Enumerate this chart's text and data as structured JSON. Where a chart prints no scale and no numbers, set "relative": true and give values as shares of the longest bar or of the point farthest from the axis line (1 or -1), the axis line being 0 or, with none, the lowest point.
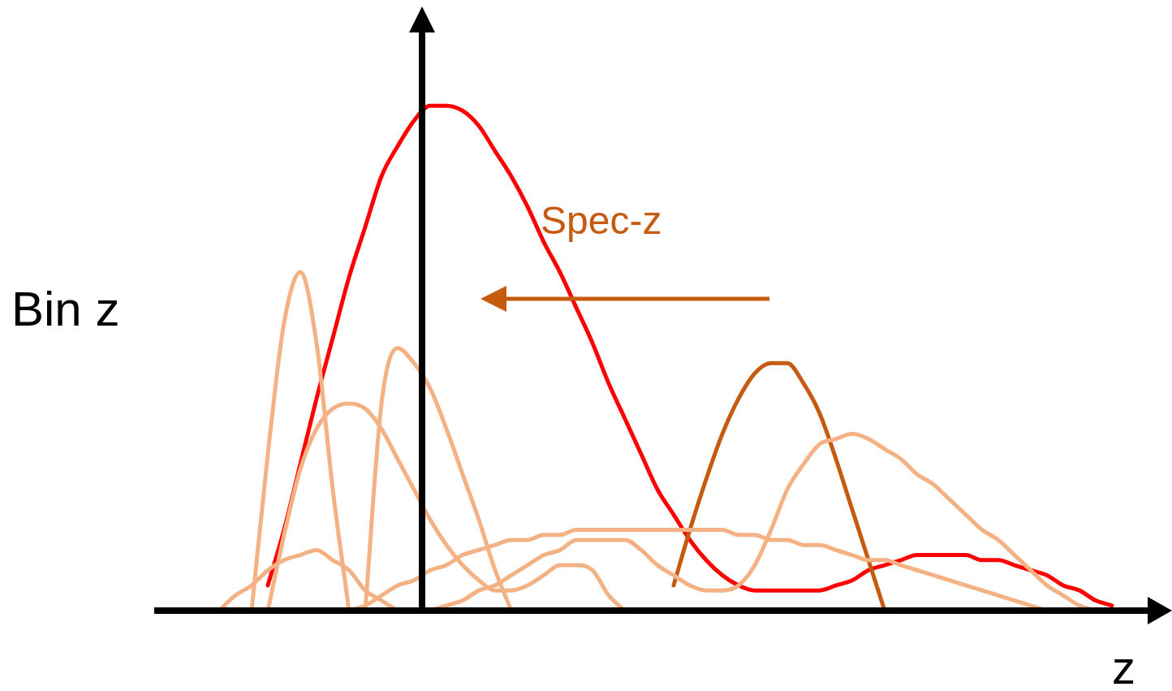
{
  "chart_data": {
    "type": "line",
    "relative": true,
    "legend": false,
    "marker": "none",
    "line_style": "solid",
    "xlabel": "z",
    "ylabel": "Bin z",
    "annotations": [
      "Spec-z"
    ],
    "categories": [
      null,
      null,
      null,
      null,
      null,
      null,
      null,
      null,
      null,
      null,
      null,
      null,
      null,
      null,
      null,
      null,
      null,
      null,
      null,
      null,
      null,
      null,
      null,
      null,
      null,
      null,
      null,
      null,
      null,
      null,
      null,
      null,
      null,
      null,
      null,
      null,
      null,
      null,
      null,
      null,
      null,
      null,
      null,
      null,
      null,
      null,
      null,
      null,
      null,
      null,
      null,
      null,
      null,
      null,
      null,
      null,
      null,
      null,
      null,
      null,
      null,
      null
    ],
    "series": [
      {
        "color": "#f4b183",
        "values": [
          null,
          null,
          null,
          null,
          null,
          null,
          0,
          0.31,
          0.57,
          0.67,
          0.53,
          0.24,
          0,
          null,
          null,
          null,
          null,
          null,
          null,
          null,
          null,
          null,
          null,
          null,
          null,
          null,
          null,
          null,
          null,
          null,
          null,
          null,
          null,
          null,
          null,
          null,
          null,
          null,
          null,
          null,
          null,
          null,
          null,
          null,
          null,
          null,
          null,
          null,
          null,
          null,
          null,
          null,
          null,
          null,
          null,
          null,
          null,
          null,
          null,
          null,
          null,
          null
        ]
      },
      {
        "color": "#f4b183",
        "values": [
          null,
          null,
          null,
          null,
          null,
          null,
          null,
          0,
          0.15,
          0.28,
          0.36,
          0.4,
          0.41,
          0.4,
          0.36,
          0.3,
          0.24,
          0.18,
          0.13,
          0.09,
          0.06,
          0.04,
          0.04,
          0.05,
          0.07,
          0.09,
          0.09,
          0.08,
          0.03,
          0,
          null,
          null,
          null,
          null,
          null,
          null,
          null,
          null,
          null,
          null,
          null,
          null,
          null,
          null,
          null,
          null,
          null,
          null,
          null,
          null,
          null,
          null,
          null,
          null,
          null,
          null,
          null,
          null,
          null,
          null,
          null,
          null
        ]
      },
      {
        "color": "#f4b183",
        "values": [
          null,
          null,
          null,
          null,
          null,
          null,
          null,
          null,
          null,
          null,
          null,
          null,
          null,
          0,
          0.41,
          0.52,
          0.49,
          0.44,
          0.36,
          0.27,
          0.18,
          0.08,
          0,
          null,
          null,
          null,
          null,
          null,
          null,
          null,
          null,
          null,
          null,
          null,
          null,
          null,
          null,
          null,
          null,
          null,
          null,
          null,
          null,
          null,
          null,
          null,
          null,
          null,
          null,
          null,
          null,
          null,
          null,
          null,
          null,
          null,
          null,
          null,
          null,
          null,
          null,
          null
        ]
      },
      {
        "color": "#f4b183",
        "values": [
          null,
          null,
          null,
          null,
          0,
          0.03,
          0.05,
          0.08,
          0.1,
          0.11,
          0.12,
          0.1,
          0.08,
          0.04,
          0.02,
          0,
          null,
          null,
          null,
          null,
          null,
          null,
          null,
          null,
          null,
          null,
          null,
          null,
          null,
          null,
          null,
          null,
          null,
          null,
          null,
          null,
          null,
          null,
          null,
          null,
          null,
          null,
          null,
          null,
          null,
          null,
          null,
          null,
          null,
          null,
          null,
          null,
          null,
          null,
          null,
          null,
          null,
          null,
          null,
          null,
          null,
          null
        ]
      },
      {
        "color": "#f4b183",
        "values": [
          null,
          null,
          null,
          null,
          null,
          null,
          null,
          null,
          null,
          null,
          null,
          null,
          0,
          0.01,
          0.03,
          0.05,
          0.06,
          0.08,
          0.09,
          0.11,
          0.12,
          0.13,
          0.14,
          0.14,
          0.15,
          0.15,
          0.16,
          0.16,
          0.16,
          0.16,
          0.16,
          0.16,
          0.16,
          0.16,
          0.16,
          0.16,
          0.15,
          0.15,
          0.14,
          0.14,
          0.13,
          0.13,
          0.12,
          0.11,
          0.1,
          0.1,
          0.09,
          0.08,
          0.07,
          0.06,
          0.05,
          0.04,
          0.03,
          0.02,
          0.01,
          0,
          null,
          null,
          null,
          null,
          null,
          null
        ]
      },
      {
        "color": "#f4b183",
        "values": [
          null,
          null,
          null,
          null,
          null,
          null,
          null,
          null,
          null,
          null,
          null,
          null,
          null,
          null,
          null,
          null,
          null,
          0,
          0.01,
          0.02,
          0.04,
          0.05,
          0.07,
          0.09,
          0.11,
          0.12,
          0.14,
          0.14,
          0.14,
          0.14,
          0.12,
          0.09,
          0.07,
          0.05,
          0.04,
          0.04,
          0.05,
          0.09,
          0.16,
          0.24,
          0.29,
          0.33,
          0.34,
          0.35,
          0.34,
          0.32,
          0.3,
          0.27,
          0.25,
          0.22,
          0.19,
          0.16,
          0.14,
          0.11,
          0.08,
          0.05,
          0.03,
          0.01,
          0,
          null,
          null,
          null
        ]
      },
      {
        "color": "#c55a11",
        "values": [
          null,
          null,
          null,
          null,
          null,
          null,
          null,
          null,
          null,
          null,
          null,
          null,
          null,
          null,
          null,
          null,
          null,
          null,
          null,
          null,
          null,
          null,
          null,
          null,
          null,
          null,
          null,
          null,
          null,
          null,
          null,
          null,
          0.05,
          0.16,
          0.26,
          0.35,
          0.42,
          0.47,
          0.49,
          0.49,
          0.45,
          0.39,
          0.3,
          0.2,
          0.1,
          0,
          null,
          null,
          null,
          null,
          null,
          null,
          null,
          null,
          null,
          null,
          null,
          null,
          null,
          null,
          null,
          null
        ]
      },
      {
        "color": "#ff0000",
        "values": [
          null,
          null,
          null,
          null,
          null,
          null,
          null,
          0.05,
          0.16,
          0.29,
          0.42,
          0.54,
          0.66,
          0.76,
          0.86,
          0.92,
          0.97,
          1.0,
          1.0,
          0.99,
          0.96,
          0.91,
          0.86,
          0.8,
          0.73,
          0.67,
          0.6,
          0.53,
          0.45,
          0.38,
          0.31,
          0.24,
          0.19,
          0.14,
          0.1,
          0.07,
          0.05,
          0.04,
          0.04,
          0.04,
          0.04,
          0.04,
          0.05,
          0.06,
          0.08,
          0.09,
          0.1,
          0.11,
          0.11,
          0.11,
          0.11,
          0.1,
          0.1,
          0.09,
          0.08,
          0.07,
          0.05,
          0.04,
          0.02,
          0.01,
          null,
          null
        ]
      }
    ]
  }
}
